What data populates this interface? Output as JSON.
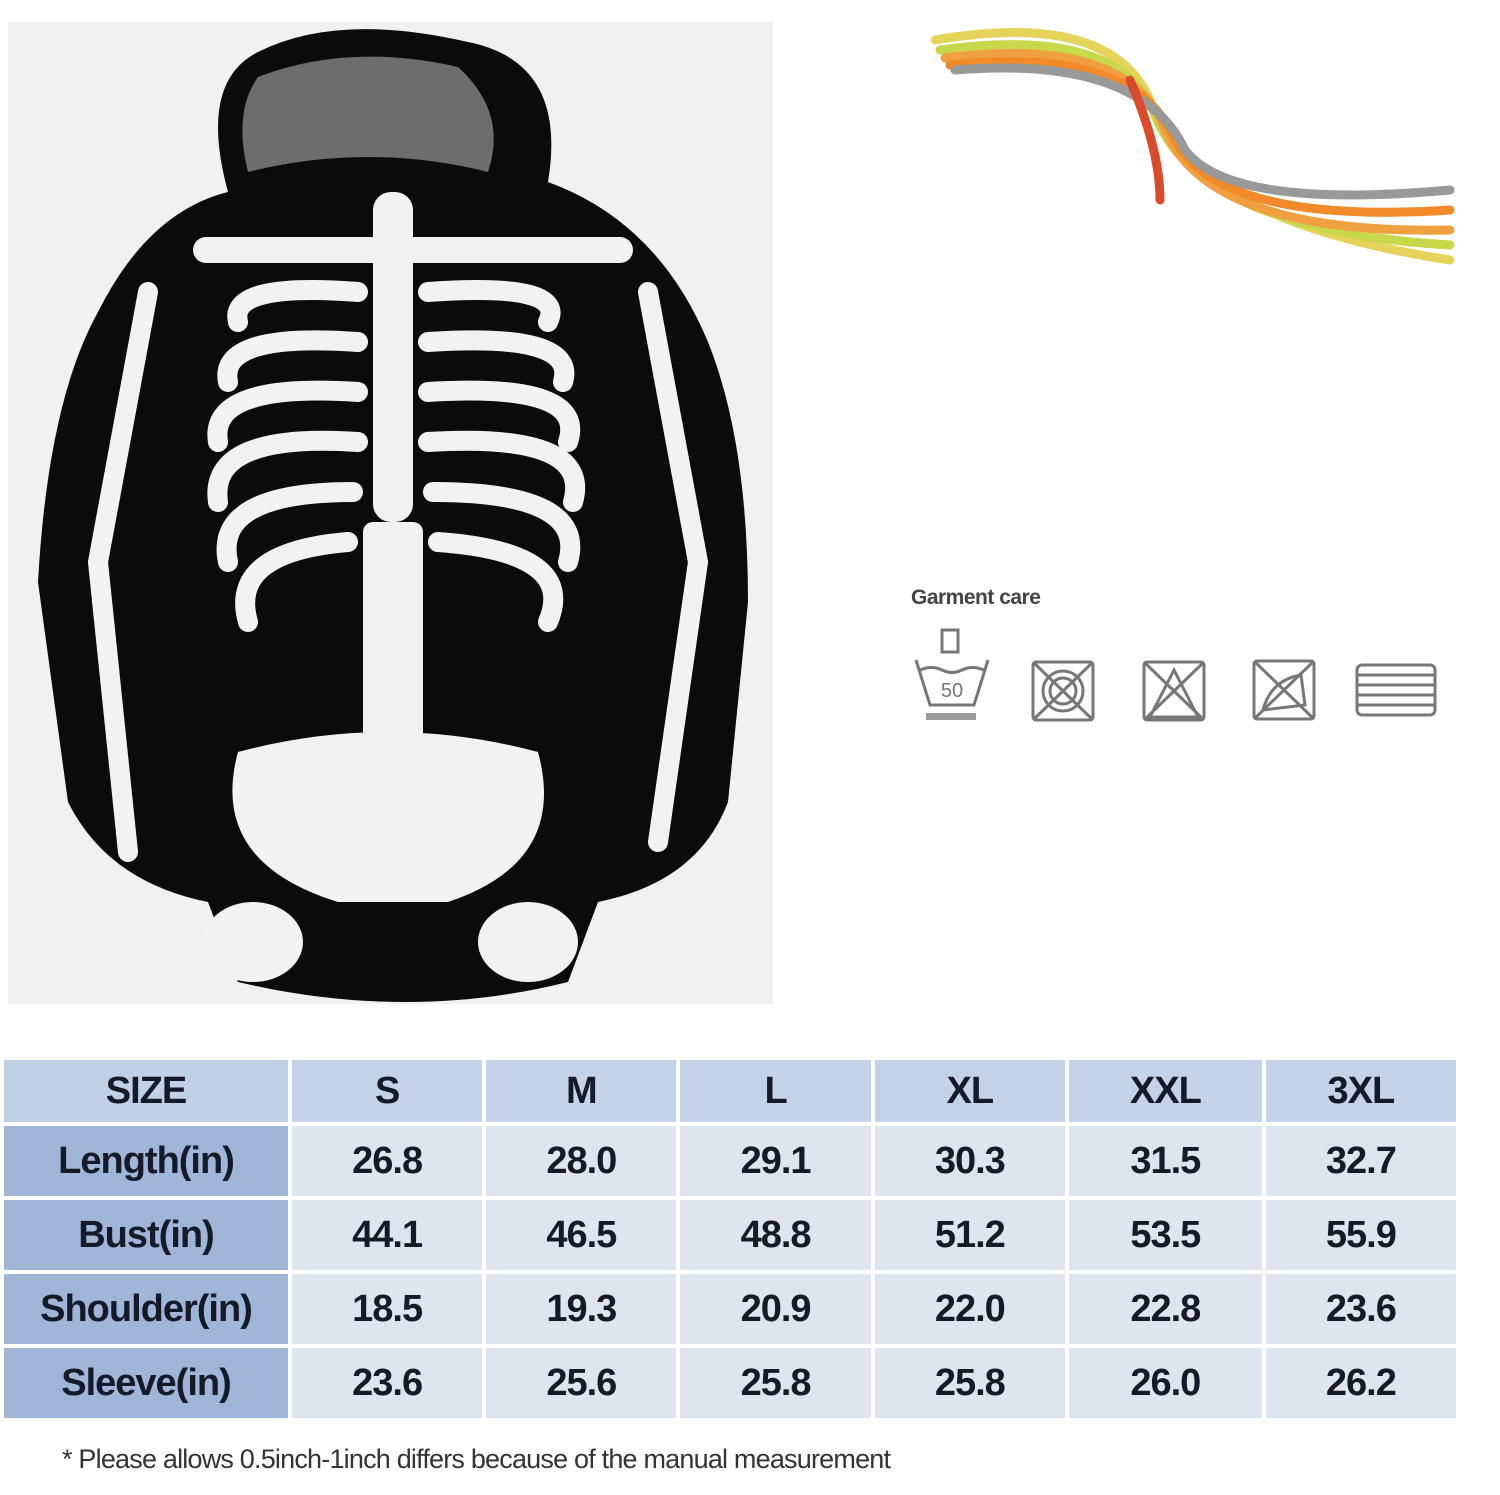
{
  "care": {
    "title": "Garment care",
    "icons": [
      "hand-wash-50-icon",
      "no-tumble-dry-icon",
      "no-bleach-icon",
      "no-iron-icon",
      "dry-flat-icon"
    ],
    "wash_temp": "50"
  },
  "size_chart": {
    "header": [
      "SIZE",
      "S",
      "M",
      "L",
      "XL",
      "XXL",
      "3XL"
    ],
    "rows": [
      {
        "label": "Length(in)",
        "values": [
          "26.8",
          "28.0",
          "29.1",
          "30.3",
          "31.5",
          "32.7"
        ]
      },
      {
        "label": "Bust(in)",
        "values": [
          "44.1",
          "46.5",
          "48.8",
          "51.2",
          "53.5",
          "55.9"
        ]
      },
      {
        "label": "Shoulder(in)",
        "values": [
          "18.5",
          "19.3",
          "20.9",
          "22.0",
          "22.8",
          "23.6"
        ]
      },
      {
        "label": "Sleeve(in)",
        "values": [
          "23.6",
          "25.6",
          "25.8",
          "25.8",
          "26.0",
          "26.2"
        ]
      }
    ],
    "note": "* Please  allows 0.5inch-1inch differs because  of  the manual measurement"
  },
  "colors": {
    "header_bg": "#c4d3e8",
    "row_label_bg": "#9fb6d8",
    "cell_bg": "#dfe5ef"
  }
}
